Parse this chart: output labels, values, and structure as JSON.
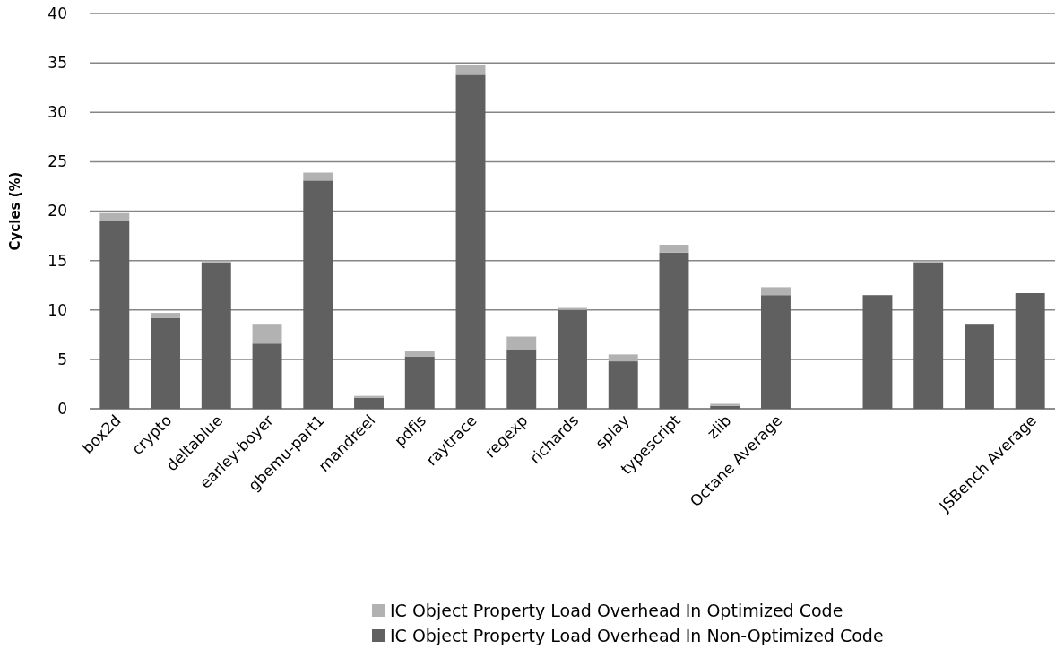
{
  "chart_data": {
    "type": "bar",
    "stacked": true,
    "ylabel": "Cycles (%)",
    "categories": [
      "box2d",
      "crypto",
      "deltablue",
      "earley-boyer",
      "gbemu-part1",
      "mandreel",
      "pdfjs",
      "raytrace",
      "regexp",
      "richards",
      "splay",
      "typescript",
      "zlib",
      "Octane Average",
      null,
      null,
      null,
      null,
      "JSBench Average"
    ],
    "series": [
      {
        "name": "IC Object Property Load Overhead In Non-Optimized Code",
        "color": "#606060",
        "values": [
          19.0,
          9.2,
          14.8,
          6.6,
          23.1,
          1.1,
          5.3,
          33.8,
          5.9,
          10.0,
          4.8,
          15.8,
          0.3,
          11.5,
          null,
          11.5,
          14.8,
          8.6,
          11.7
        ]
      },
      {
        "name": "IC Object Property Load Overhead In Optimized Code",
        "color": "#b2b2b2",
        "values": [
          0.8,
          0.5,
          0.2,
          2.0,
          0.8,
          0.2,
          0.5,
          1.0,
          1.4,
          0.2,
          0.7,
          0.8,
          0.2,
          0.8,
          null,
          0,
          0.2,
          0,
          0
        ]
      }
    ],
    "ylim": [
      0,
      40
    ],
    "yticks": [
      0,
      5,
      10,
      15,
      20,
      25,
      30,
      35,
      40
    ],
    "grid": "y",
    "legend": "bottom"
  }
}
